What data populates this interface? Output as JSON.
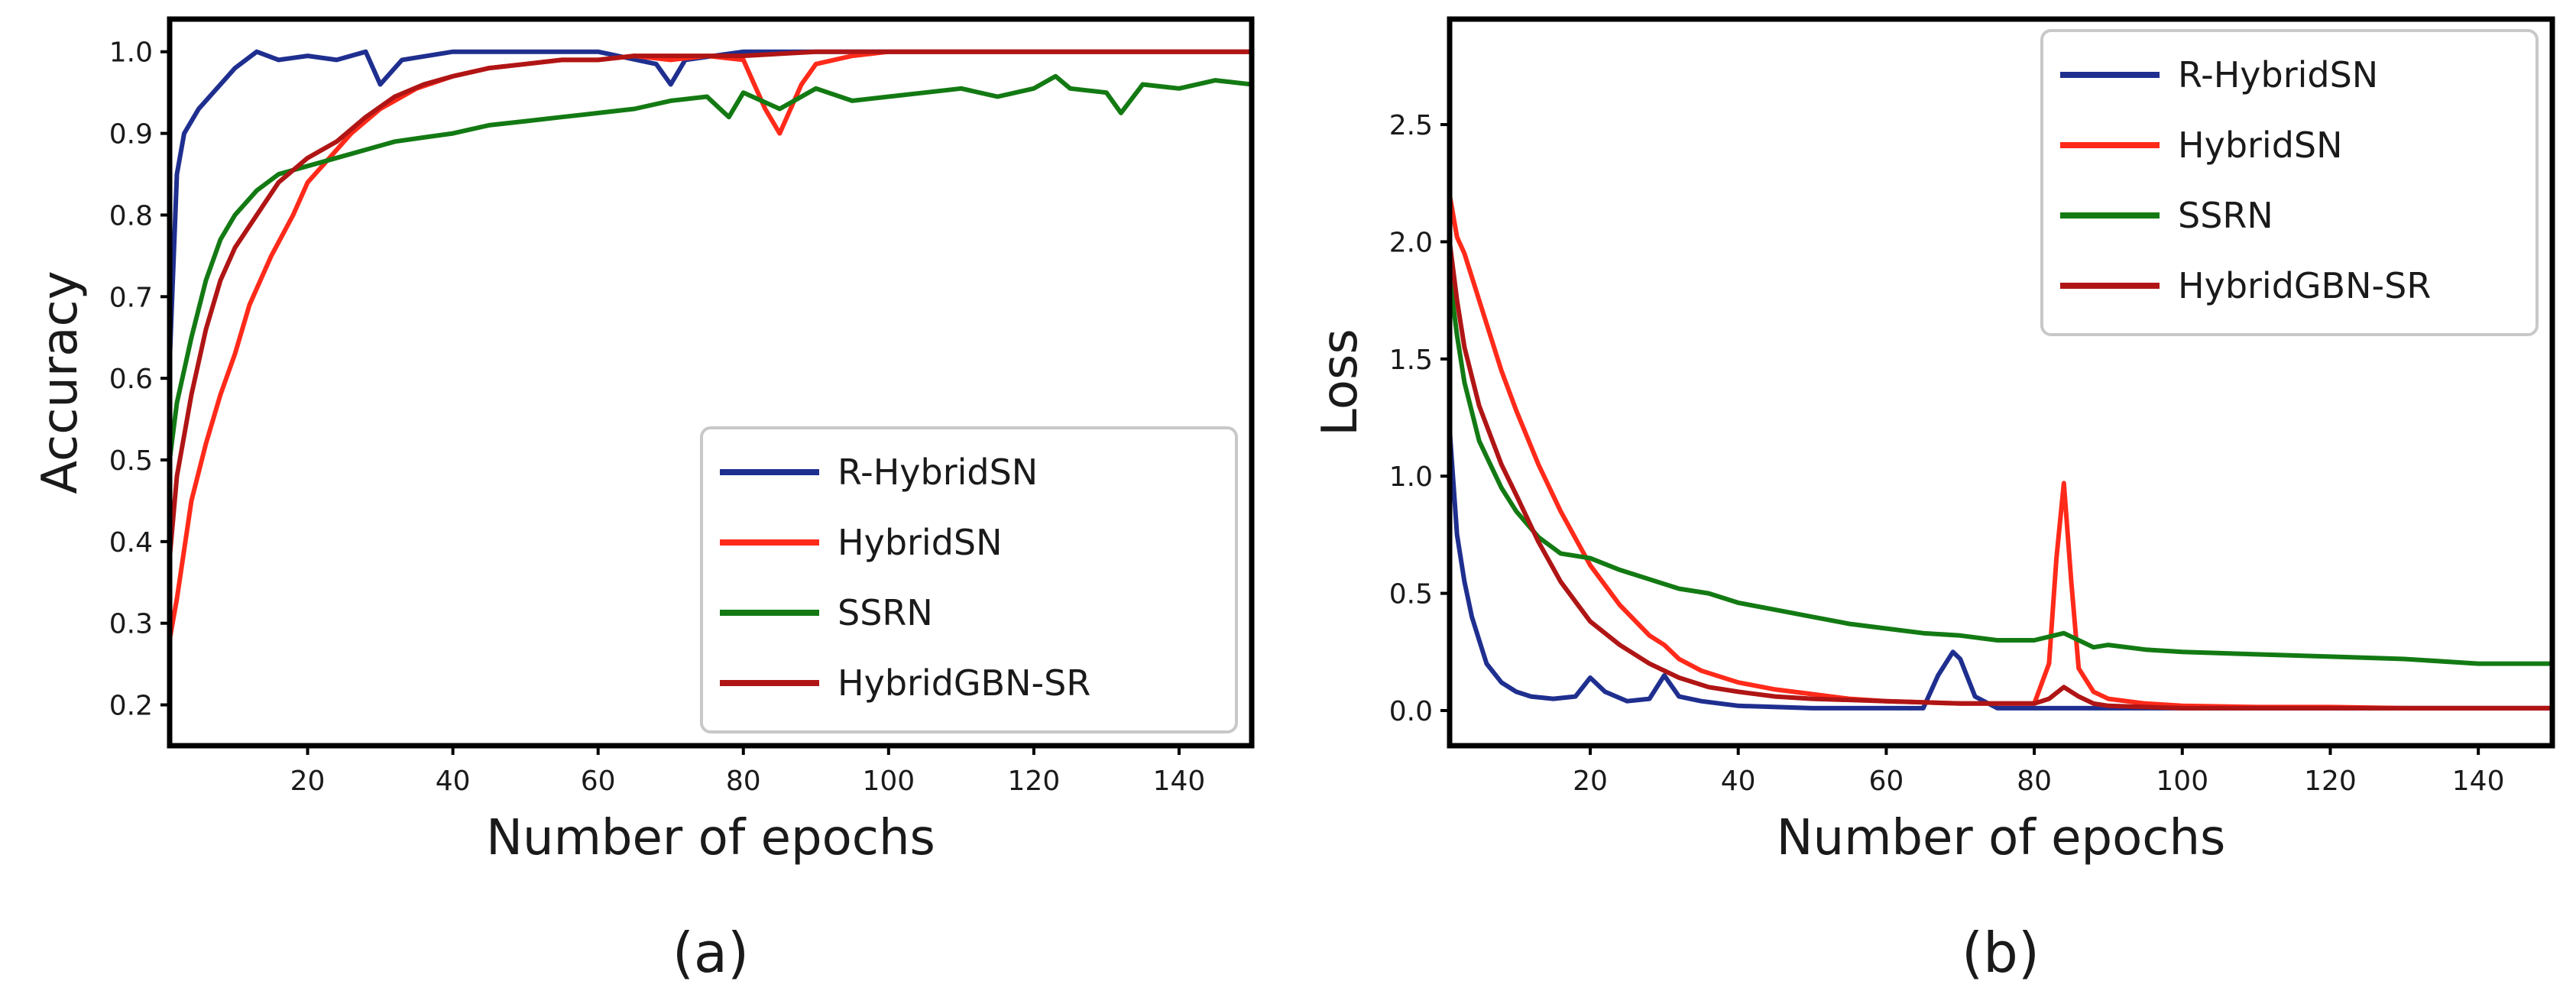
{
  "chart_data": [
    {
      "type": "line",
      "panel_label": "(a)",
      "title": "",
      "xlabel": "Number of epochs",
      "ylabel": "Accuracy",
      "xlim": [
        1,
        150
      ],
      "ylim": [
        0.15,
        1.04
      ],
      "xticks": [
        20,
        40,
        60,
        80,
        100,
        120,
        140
      ],
      "yticks": [
        0.2,
        0.3,
        0.4,
        0.5,
        0.6,
        0.7,
        0.8,
        0.9,
        1.0
      ],
      "ytick_labels": [
        "0.2",
        "0.3",
        "0.4",
        "0.5",
        "0.6",
        "0.7",
        "0.8",
        "0.9",
        "1.0"
      ],
      "legend_position": "lower-right",
      "grid": false,
      "series": [
        {
          "name": "R-HybridSN",
          "color": "#1f2f8f",
          "x": [
            1,
            2,
            3,
            5,
            8,
            10,
            13,
            16,
            20,
            24,
            28,
            30,
            33,
            40,
            50,
            60,
            68,
            70,
            72,
            80,
            90,
            100,
            110,
            120,
            130,
            140,
            150
          ],
          "y": [
            0.62,
            0.85,
            0.9,
            0.93,
            0.96,
            0.98,
            1.0,
            0.99,
            0.995,
            0.99,
            1.0,
            0.96,
            0.99,
            1.0,
            1.0,
            1.0,
            0.985,
            0.96,
            0.99,
            1.0,
            1.0,
            1.0,
            1.0,
            1.0,
            1.0,
            1.0,
            1.0
          ]
        },
        {
          "name": "HybridSN",
          "color": "#ff2a1a",
          "x": [
            1,
            2,
            4,
            6,
            8,
            10,
            12,
            15,
            18,
            20,
            23,
            26,
            30,
            35,
            40,
            45,
            50,
            55,
            60,
            65,
            70,
            75,
            80,
            83,
            85,
            88,
            90,
            95,
            100,
            110,
            120,
            130,
            140,
            150
          ],
          "y": [
            0.28,
            0.33,
            0.45,
            0.52,
            0.58,
            0.63,
            0.69,
            0.75,
            0.8,
            0.84,
            0.87,
            0.9,
            0.93,
            0.955,
            0.97,
            0.98,
            0.985,
            0.99,
            0.99,
            0.995,
            0.99,
            0.995,
            0.99,
            0.93,
            0.9,
            0.96,
            0.985,
            0.995,
            1.0,
            1.0,
            1.0,
            1.0,
            1.0,
            1.0
          ]
        },
        {
          "name": "SSRN",
          "color": "#137a13",
          "x": [
            1,
            2,
            4,
            6,
            8,
            10,
            13,
            16,
            20,
            24,
            28,
            32,
            36,
            40,
            45,
            50,
            55,
            60,
            65,
            70,
            75,
            78,
            80,
            85,
            90,
            95,
            100,
            105,
            110,
            115,
            120,
            123,
            125,
            130,
            132,
            135,
            140,
            145,
            150
          ],
          "y": [
            0.5,
            0.57,
            0.65,
            0.72,
            0.77,
            0.8,
            0.83,
            0.85,
            0.86,
            0.87,
            0.88,
            0.89,
            0.895,
            0.9,
            0.91,
            0.915,
            0.92,
            0.925,
            0.93,
            0.94,
            0.945,
            0.92,
            0.95,
            0.93,
            0.955,
            0.94,
            0.945,
            0.95,
            0.955,
            0.945,
            0.955,
            0.97,
            0.955,
            0.95,
            0.925,
            0.96,
            0.955,
            0.965,
            0.96
          ]
        },
        {
          "name": "HybridGBN-SR",
          "color": "#b01515",
          "x": [
            1,
            2,
            4,
            6,
            8,
            10,
            13,
            16,
            20,
            24,
            28,
            32,
            36,
            40,
            45,
            50,
            55,
            60,
            65,
            70,
            80,
            90,
            100,
            110,
            120,
            130,
            140,
            150
          ],
          "y": [
            0.38,
            0.48,
            0.58,
            0.66,
            0.72,
            0.76,
            0.8,
            0.84,
            0.87,
            0.89,
            0.92,
            0.945,
            0.96,
            0.97,
            0.98,
            0.985,
            0.99,
            0.99,
            0.995,
            0.995,
            0.995,
            1.0,
            1.0,
            1.0,
            1.0,
            1.0,
            1.0,
            1.0
          ]
        }
      ]
    },
    {
      "type": "line",
      "panel_label": "(b)",
      "title": "",
      "xlabel": "Number of epochs",
      "ylabel": "Loss",
      "xlim": [
        1,
        150
      ],
      "ylim": [
        -0.15,
        2.95
      ],
      "xticks": [
        20,
        40,
        60,
        80,
        100,
        120,
        140
      ],
      "yticks": [
        0.0,
        0.5,
        1.0,
        1.5,
        2.0,
        2.5
      ],
      "ytick_labels": [
        "0.0",
        "0.5",
        "1.0",
        "1.5",
        "2.0",
        "2.5"
      ],
      "legend_position": "upper-right",
      "grid": false,
      "series": [
        {
          "name": "R-HybridSN",
          "color": "#1f2f8f",
          "x": [
            1,
            2,
            3,
            4,
            5,
            6,
            8,
            10,
            12,
            15,
            18,
            20,
            22,
            25,
            28,
            30,
            32,
            35,
            40,
            50,
            60,
            65,
            67,
            69,
            70,
            72,
            75,
            80,
            90,
            100,
            150
          ],
          "y": [
            1.2,
            0.75,
            0.55,
            0.4,
            0.3,
            0.2,
            0.12,
            0.08,
            0.06,
            0.05,
            0.06,
            0.14,
            0.08,
            0.04,
            0.05,
            0.15,
            0.06,
            0.04,
            0.02,
            0.01,
            0.01,
            0.01,
            0.15,
            0.25,
            0.22,
            0.06,
            0.01,
            0.01,
            0.01,
            0.01,
            0.01
          ]
        },
        {
          "name": "HybridSN",
          "color": "#ff2a1a",
          "x": [
            1,
            2,
            3,
            5,
            8,
            10,
            13,
            16,
            20,
            24,
            28,
            30,
            32,
            35,
            40,
            45,
            50,
            55,
            60,
            70,
            80,
            82,
            83,
            84,
            85,
            86,
            88,
            90,
            95,
            100,
            110,
            120,
            130,
            140,
            150
          ],
          "y": [
            2.2,
            2.02,
            1.95,
            1.75,
            1.45,
            1.28,
            1.05,
            0.85,
            0.62,
            0.45,
            0.32,
            0.28,
            0.22,
            0.17,
            0.12,
            0.09,
            0.07,
            0.05,
            0.04,
            0.03,
            0.03,
            0.2,
            0.65,
            0.97,
            0.55,
            0.18,
            0.08,
            0.05,
            0.03,
            0.02,
            0.015,
            0.015,
            0.01,
            0.01,
            0.01
          ]
        },
        {
          "name": "SSRN",
          "color": "#137a13",
          "x": [
            1,
            2,
            3,
            5,
            8,
            10,
            13,
            16,
            20,
            24,
            28,
            32,
            36,
            40,
            45,
            50,
            55,
            60,
            65,
            70,
            75,
            80,
            84,
            88,
            90,
            95,
            100,
            110,
            120,
            130,
            140,
            150
          ],
          "y": [
            1.85,
            1.6,
            1.4,
            1.15,
            0.95,
            0.85,
            0.74,
            0.67,
            0.65,
            0.6,
            0.56,
            0.52,
            0.5,
            0.46,
            0.43,
            0.4,
            0.37,
            0.35,
            0.33,
            0.32,
            0.3,
            0.3,
            0.33,
            0.27,
            0.28,
            0.26,
            0.25,
            0.24,
            0.23,
            0.22,
            0.2,
            0.2
          ]
        },
        {
          "name": "HybridGBN-SR",
          "color": "#b01515",
          "x": [
            1,
            2,
            3,
            5,
            8,
            10,
            13,
            16,
            20,
            24,
            28,
            32,
            36,
            40,
            45,
            50,
            60,
            70,
            80,
            82,
            84,
            86,
            88,
            90,
            100,
            110,
            120,
            130,
            140,
            150
          ],
          "y": [
            2.0,
            1.75,
            1.55,
            1.3,
            1.05,
            0.92,
            0.72,
            0.55,
            0.38,
            0.28,
            0.2,
            0.14,
            0.1,
            0.08,
            0.06,
            0.05,
            0.04,
            0.03,
            0.03,
            0.05,
            0.1,
            0.06,
            0.03,
            0.02,
            0.01,
            0.01,
            0.01,
            0.01,
            0.01,
            0.01
          ]
        }
      ]
    }
  ]
}
